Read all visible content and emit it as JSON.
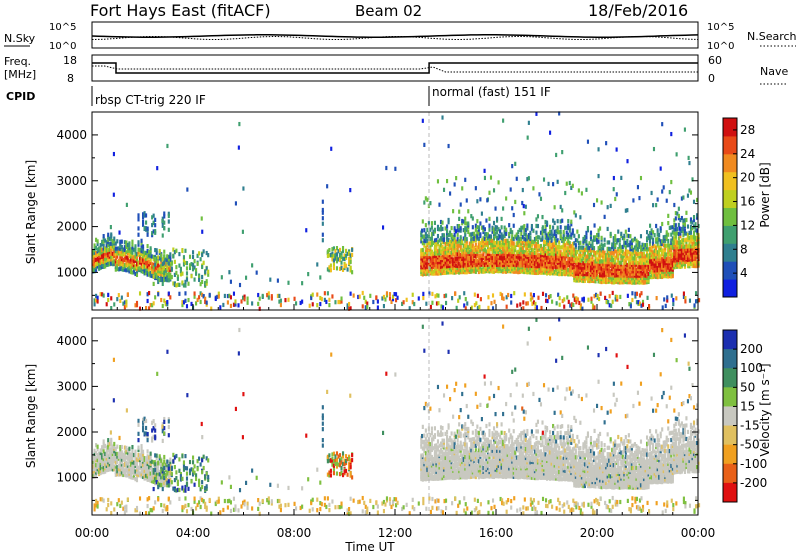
{
  "header": {
    "title": "Fort Hays East (fitACF)",
    "beam": "Beam 02",
    "date": "18/Feb/2016"
  },
  "top_panel": {
    "left_label_1": "N.Sky",
    "left_label_2": "Freq.",
    "left_label_3": "[MHz]",
    "left_label_4": "CPID",
    "right_label_1": "N.Search",
    "right_label_2": "Nave",
    "nsky_ticks": [
      "10^5",
      "10^0"
    ],
    "nsearch_ticks": [
      "10^5",
      "10^0"
    ],
    "freq_ticks": [
      "18",
      "8"
    ],
    "nave_ticks": [
      "60",
      "0"
    ],
    "cpid_1": "rbsp CT-trig 220 IF",
    "cpid_2": "normal (fast) 151 IF"
  },
  "chart_data": [
    {
      "type": "heatmap",
      "name": "power",
      "ylabel": "Slant Range [km]",
      "xlabel": "Time UT",
      "x_ticks": [
        "00:00",
        "04:00",
        "08:00",
        "12:00",
        "16:00",
        "20:00",
        "00:00"
      ],
      "x_range_hours": [
        0,
        24
      ],
      "ylim": [
        180,
        4500
      ],
      "y_ticks": [
        1000,
        2000,
        3000,
        4000
      ],
      "colorbar": {
        "label": "Power [dB]",
        "ticks": [
          4,
          8,
          12,
          16,
          20,
          24,
          28
        ],
        "range": [
          0,
          30
        ],
        "colors": [
          "#1020e0",
          "#1f4fb8",
          "#2f7f8f",
          "#3f9f6f",
          "#6fbf3f",
          "#bfcf1f",
          "#f0c020",
          "#f08a20",
          "#e84a18",
          "#d01010"
        ]
      }
    },
    {
      "type": "heatmap",
      "name": "velocity",
      "ylabel": "Slant Range [km]",
      "xlabel": "Time UT",
      "x_ticks": [
        "00:00",
        "04:00",
        "08:00",
        "12:00",
        "16:00",
        "20:00",
        "00:00"
      ],
      "x_range_hours": [
        0,
        24
      ],
      "ylim": [
        180,
        4500
      ],
      "y_ticks": [
        1000,
        2000,
        3000,
        4000
      ],
      "colorbar": {
        "label": "Velocity [m s⁻¹]",
        "ticks": [
          200,
          100,
          50,
          15,
          -15,
          -50,
          -100,
          -200
        ],
        "colors": [
          "#1c2fb0",
          "#2f6f8f",
          "#3f8f5f",
          "#7fc040",
          "#c8c8c0",
          "#e0c060",
          "#f0a020",
          "#e86018",
          "#e01010"
        ]
      }
    }
  ]
}
